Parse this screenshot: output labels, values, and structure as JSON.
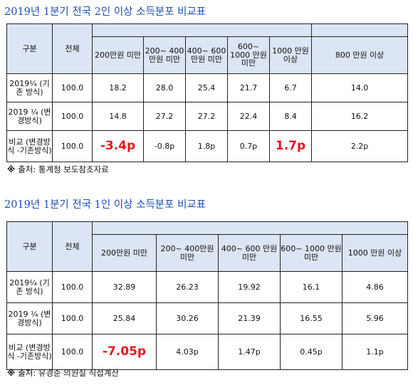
{
  "table1": {
    "title": "2019년 1분기 전국 2인 이상 소득분포 비교표",
    "headers": [
      "구분",
      "전체",
      "200만원 미만",
      "200~ 400만원 미만",
      "400~ 600 만원 미만",
      "600~ 1000 만원 미만",
      "1000 만원 이상",
      "800 만원 이상"
    ],
    "rows": [
      {
        "label": "2019¼ (기존 방식)",
        "cells": [
          "100.0",
          "18.2",
          "28.0",
          "25.4",
          "21.7",
          "6.7",
          "14.0"
        ]
      },
      {
        "label": "2019 ¼ (변경방식)",
        "cells": [
          "100.0",
          "14.8",
          "27.2",
          "27.2",
          "22.4",
          "8.4",
          "16.2"
        ]
      },
      {
        "label": "비교 (변경방식 -기존방식)",
        "cells": [
          "100.0",
          "-3.4p",
          "-0.8p",
          "1.8p",
          "0.7p",
          "1.7p",
          "2.2p"
        ]
      }
    ],
    "note_mark": "※",
    "note": "출처: 통계청 보도참조자료"
  },
  "table2": {
    "title": "2019년 1분기 전국 1인 이상 소득분포 비교표",
    "headers": [
      "구분",
      "전체",
      "200만원 미만",
      "200~ 400만원 미만",
      "400~ 600 만원 미만",
      "600~ 1000 만원 미만",
      "1000 만원 이상"
    ],
    "rows": [
      {
        "label": "2019¼ (기존 방식)",
        "cells": [
          "100.0",
          "32.89",
          "26.23",
          "19.92",
          "16.1",
          "4.86"
        ]
      },
      {
        "label": "2019 ¼ (변경방식)",
        "cells": [
          "100.0",
          "25.84",
          "30.26",
          "21.39",
          "16.55",
          "5.96"
        ]
      },
      {
        "label": "비교 (변경방식 -기존방식)",
        "cells": [
          "100.0",
          "-7.05p",
          "4.03p",
          "1.47p",
          "0.45p",
          "1.1p"
        ]
      }
    ],
    "note_mark": "※",
    "note": "출처: 유경준 의원실 직접계산"
  },
  "colors": {
    "title": "#1f4fb0",
    "header_bg": "#dbe5f3",
    "highlight": "#e8141b"
  }
}
